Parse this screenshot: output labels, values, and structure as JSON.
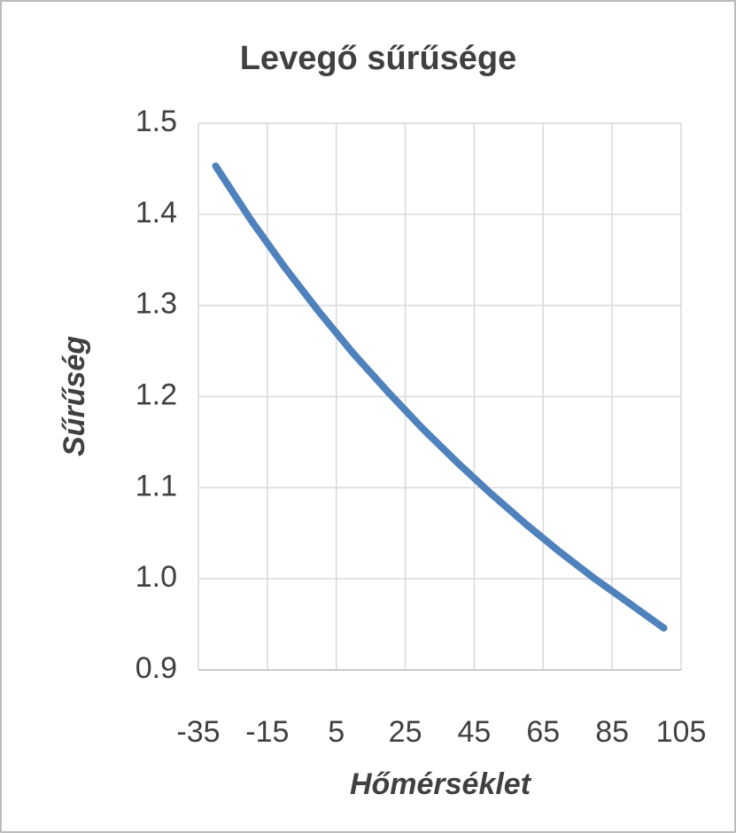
{
  "chart_data": {
    "type": "line",
    "title": "Levegő sűrűsége",
    "x_label": "Hőmérséklet",
    "y_label": "Sűrűség",
    "x": [
      -30,
      -20,
      -10,
      0,
      10,
      20,
      30,
      40,
      50,
      60,
      70,
      80,
      90,
      100
    ],
    "series": [
      {
        "name": "Sűrűség",
        "color": "#4f81bd",
        "values": [
          1.453,
          1.395,
          1.342,
          1.293,
          1.247,
          1.205,
          1.165,
          1.128,
          1.093,
          1.06,
          1.029,
          1.0,
          0.973,
          0.946
        ]
      }
    ],
    "xlim": [
      -35,
      105
    ],
    "xticks": [
      -35,
      -15,
      5,
      25,
      45,
      65,
      85,
      105
    ],
    "ylim": [
      0.9,
      1.5
    ],
    "yticks": [
      0.9,
      {
        "value": 1,
        "label": "1.0"
      },
      1.1,
      1.2,
      1.3,
      1.4,
      1.5
    ],
    "grid": true
  }
}
